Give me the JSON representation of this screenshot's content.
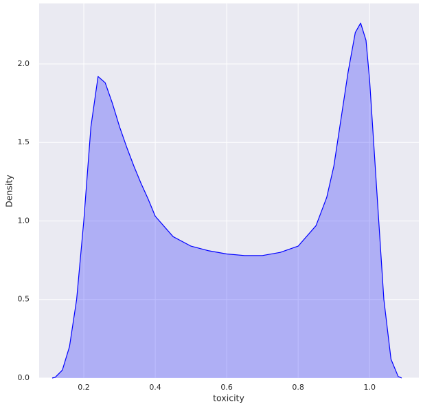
{
  "chart_data": {
    "type": "area",
    "x_label": "toxicity",
    "y_label": "Density",
    "x": [
      0.1115,
      0.12,
      0.14,
      0.16,
      0.18,
      0.2,
      0.22,
      0.24,
      0.26,
      0.28,
      0.3,
      0.32,
      0.34,
      0.36,
      0.38,
      0.4,
      0.45,
      0.5,
      0.55,
      0.6,
      0.65,
      0.7,
      0.75,
      0.8,
      0.85,
      0.88,
      0.9,
      0.92,
      0.94,
      0.96,
      0.975,
      0.99,
      1.0,
      1.02,
      1.04,
      1.06,
      1.08,
      1.09
    ],
    "values": [
      0,
      0.005,
      0.05,
      0.2,
      0.5,
      1.0,
      1.6,
      1.92,
      1.88,
      1.75,
      1.6,
      1.47,
      1.35,
      1.24,
      1.14,
      1.03,
      0.9,
      0.84,
      0.81,
      0.79,
      0.78,
      0.78,
      0.8,
      0.84,
      0.97,
      1.15,
      1.35,
      1.65,
      1.95,
      2.2,
      2.26,
      2.15,
      1.9,
      1.2,
      0.5,
      0.12,
      0.01,
      0
    ],
    "color": "#0000ff",
    "xlim": [
      0.075,
      1.138
    ],
    "ylim": [
      0,
      2.385
    ],
    "xticks": [
      0.2,
      0.4,
      0.6,
      0.8,
      {
        "value": 1,
        "label": "1.0"
      }
    ],
    "yticks": [
      {
        "value": 0,
        "label": "0.0"
      },
      0.5,
      {
        "value": 1,
        "label": "1.0"
      },
      1.5,
      {
        "value": 2,
        "label": "2.0"
      }
    ],
    "grid": true
  }
}
